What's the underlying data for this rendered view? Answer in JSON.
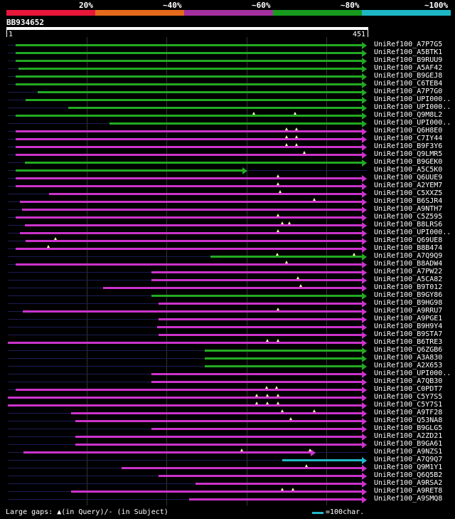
{
  "legend": {
    "colors": [
      "#e8173a",
      "#e56a1b",
      "#a42f9e",
      "#179a1e",
      "#1db6c4"
    ],
    "labels": [
      "20%",
      "~40%",
      "~60%",
      "~80%",
      "~100%"
    ]
  },
  "query": {
    "id": "BB934652",
    "length": 451,
    "start_label": "1",
    "end_label": "451"
  },
  "colors": {
    "magenta": "#cc33cc",
    "green": "#22aa22",
    "cyan": "#20b8c8",
    "gap_marker": "#ffffaa"
  },
  "hits": [
    {
      "name": "UniRef100_A7P7G5",
      "start": 11,
      "end": 451,
      "color": "green",
      "gaps": []
    },
    {
      "name": "UniRef100_A5BTK1",
      "start": 11,
      "end": 451,
      "color": "green",
      "gaps": []
    },
    {
      "name": "UniRef100_B9RUU9",
      "start": 11,
      "end": 451,
      "color": "green",
      "gaps": []
    },
    {
      "name": "UniRef100_A5AF42",
      "start": 14,
      "end": 451,
      "color": "green",
      "gaps": []
    },
    {
      "name": "UniRef100_B9GEJ8",
      "start": 11,
      "end": 451,
      "color": "green",
      "gaps": []
    },
    {
      "name": "UniRef100_C6TEB4",
      "start": 11,
      "end": 451,
      "color": "green",
      "gaps": []
    },
    {
      "name": "UniRef100_A7P7G0",
      "start": 38,
      "end": 451,
      "color": "green",
      "gaps": []
    },
    {
      "name": "UniRef100_UPI000..",
      "start": 23,
      "end": 451,
      "color": "green",
      "gaps": []
    },
    {
      "name": "UniRef100_UPI000..",
      "start": 77,
      "end": 451,
      "color": "green",
      "gaps": []
    },
    {
      "name": "UniRef100_Q9M8L2",
      "start": 11,
      "end": 451,
      "color": "green",
      "gaps": [
        309,
        361
      ]
    },
    {
      "name": "UniRef100_UPI000..",
      "start": 128,
      "end": 451,
      "color": "green",
      "gaps": []
    },
    {
      "name": "UniRef100_Q6H8E0",
      "start": 11,
      "end": 451,
      "color": "magenta",
      "gaps": [
        350,
        363
      ]
    },
    {
      "name": "UniRef100_C7IY44",
      "start": 11,
      "end": 451,
      "color": "magenta",
      "gaps": [
        350,
        363
      ]
    },
    {
      "name": "UniRef100_B9F3Y6",
      "start": 11,
      "end": 451,
      "color": "magenta",
      "gaps": [
        350,
        363
      ]
    },
    {
      "name": "UniRef100_Q9LMR5",
      "start": 11,
      "end": 451,
      "color": "magenta",
      "gaps": [
        373
      ]
    },
    {
      "name": "UniRef100_B9GEK0",
      "start": 22,
      "end": 451,
      "color": "green",
      "gaps": []
    },
    {
      "name": "UniRef100_A5C5K0",
      "start": 11,
      "end": 301,
      "color": "green",
      "gaps": []
    },
    {
      "name": "UniRef100_Q6UUE9",
      "start": 11,
      "end": 451,
      "color": "magenta",
      "gaps": [
        340
      ]
    },
    {
      "name": "UniRef100_A2YEM7",
      "start": 11,
      "end": 451,
      "color": "magenta",
      "gaps": [
        340
      ]
    },
    {
      "name": "UniRef100_C5XXZ5",
      "start": 53,
      "end": 451,
      "color": "magenta",
      "gaps": [
        342
      ]
    },
    {
      "name": "UniRef100_B6SJR4",
      "start": 16,
      "end": 451,
      "color": "magenta",
      "gaps": [
        385
      ]
    },
    {
      "name": "UniRef100_A9NTH7",
      "start": 19,
      "end": 451,
      "color": "magenta",
      "gaps": []
    },
    {
      "name": "UniRef100_C5Z595",
      "start": 11,
      "end": 451,
      "color": "magenta",
      "gaps": [
        340
      ]
    },
    {
      "name": "UniRef100_B8LRS6",
      "start": 22,
      "end": 451,
      "color": "magenta",
      "gaps": [
        345,
        354
      ]
    },
    {
      "name": "UniRef100_UPI000..",
      "start": 16,
      "end": 451,
      "color": "magenta",
      "gaps": [
        340
      ]
    },
    {
      "name": "UniRef100_Q69UE8",
      "start": 23,
      "end": 451,
      "color": "magenta",
      "gaps": [
        61
      ]
    },
    {
      "name": "UniRef100_B8B474",
      "start": 11,
      "end": 451,
      "color": "magenta",
      "gaps": [
        52
      ]
    },
    {
      "name": "UniRef100_A7Q9Q9",
      "start": 255,
      "end": 451,
      "color": "green",
      "gaps": [
        339,
        435
      ]
    },
    {
      "name": "UniRef100_B8ADW4",
      "start": 11,
      "end": 451,
      "color": "magenta",
      "gaps": [
        350
      ]
    },
    {
      "name": "UniRef100_A7PW22",
      "start": 181,
      "end": 451,
      "color": "magenta",
      "gaps": []
    },
    {
      "name": "UniRef100_A5CA82",
      "start": 181,
      "end": 451,
      "color": "magenta",
      "gaps": [
        365
      ]
    },
    {
      "name": "UniRef100_B9T012",
      "start": 120,
      "end": 451,
      "color": "magenta",
      "gaps": [
        368
      ]
    },
    {
      "name": "UniRef100_B9GY86",
      "start": 181,
      "end": 451,
      "color": "green",
      "gaps": []
    },
    {
      "name": "UniRef100_B9HG98",
      "start": 190,
      "end": 451,
      "color": "magenta",
      "gaps": []
    },
    {
      "name": "UniRef100_A9RRU7",
      "start": 20,
      "end": 451,
      "color": "magenta",
      "gaps": [
        340
      ]
    },
    {
      "name": "UniRef100_A9PGE1",
      "start": 190,
      "end": 451,
      "color": "magenta",
      "gaps": []
    },
    {
      "name": "UniRef100_B9H9Y4",
      "start": 188,
      "end": 451,
      "color": "magenta",
      "gaps": []
    },
    {
      "name": "UniRef100_B9STA7",
      "start": 190,
      "end": 451,
      "color": "magenta",
      "gaps": []
    },
    {
      "name": "UniRef100_B6TRE3",
      "start": 1,
      "end": 451,
      "color": "magenta",
      "gaps": [
        326,
        340
      ]
    },
    {
      "name": "UniRef100_Q6ZGB6",
      "start": 248,
      "end": 451,
      "color": "green",
      "gaps": []
    },
    {
      "name": "UniRef100_A3A830",
      "start": 248,
      "end": 451,
      "color": "green",
      "gaps": []
    },
    {
      "name": "UniRef100_A2X653",
      "start": 248,
      "end": 451,
      "color": "green",
      "gaps": []
    },
    {
      "name": "UniRef100_UPI000..",
      "start": 181,
      "end": 451,
      "color": "magenta",
      "gaps": []
    },
    {
      "name": "UniRef100_A7QB30",
      "start": 181,
      "end": 451,
      "color": "magenta",
      "gaps": []
    },
    {
      "name": "UniRef100_C0PDT7",
      "start": 11,
      "end": 451,
      "color": "magenta",
      "gaps": [
        325,
        338
      ]
    },
    {
      "name": "UniRef100_C5Y7S5",
      "start": 1,
      "end": 451,
      "color": "magenta",
      "gaps": [
        313,
        326,
        340
      ]
    },
    {
      "name": "UniRef100_C5Y7S1",
      "start": 1,
      "end": 451,
      "color": "magenta",
      "gaps": [
        313,
        326,
        340
      ]
    },
    {
      "name": "UniRef100_A9TF28",
      "start": 80,
      "end": 451,
      "color": "magenta",
      "gaps": [
        345,
        385
      ]
    },
    {
      "name": "UniRef100_Q53NA8",
      "start": 86,
      "end": 451,
      "color": "magenta",
      "gaps": [
        356
      ]
    },
    {
      "name": "UniRef100_B9GLG5",
      "start": 181,
      "end": 451,
      "color": "magenta",
      "gaps": []
    },
    {
      "name": "UniRef100_A2ZD21",
      "start": 86,
      "end": 451,
      "color": "magenta",
      "gaps": []
    },
    {
      "name": "UniRef100_B9GA61",
      "start": 86,
      "end": 451,
      "color": "magenta",
      "gaps": []
    },
    {
      "name": "UniRef100_A9NZS1",
      "start": 21,
      "end": 387,
      "color": "magenta",
      "gaps": [
        294,
        380
      ]
    },
    {
      "name": "UniRef100_A7Q9Q7",
      "start": 345,
      "end": 451,
      "color": "cyan",
      "gaps": []
    },
    {
      "name": "UniRef100_Q9M1Y1",
      "start": 144,
      "end": 451,
      "color": "magenta",
      "gaps": [
        375
      ]
    },
    {
      "name": "UniRef100_Q6Q5B2",
      "start": 190,
      "end": 451,
      "color": "magenta",
      "gaps": []
    },
    {
      "name": "UniRef100_A9RSA2",
      "start": 236,
      "end": 451,
      "color": "magenta",
      "gaps": []
    },
    {
      "name": "UniRef100_A9RET8",
      "start": 80,
      "end": 451,
      "color": "magenta",
      "gaps": [
        345,
        358
      ]
    },
    {
      "name": "UniRef100_A9SMQ8",
      "start": 228,
      "end": 451,
      "color": "magenta",
      "gaps": []
    }
  ],
  "footer": {
    "gaps_note": "Large gaps: ▲(in Query)/- (in Subject)",
    "scale_label": "=100char."
  }
}
